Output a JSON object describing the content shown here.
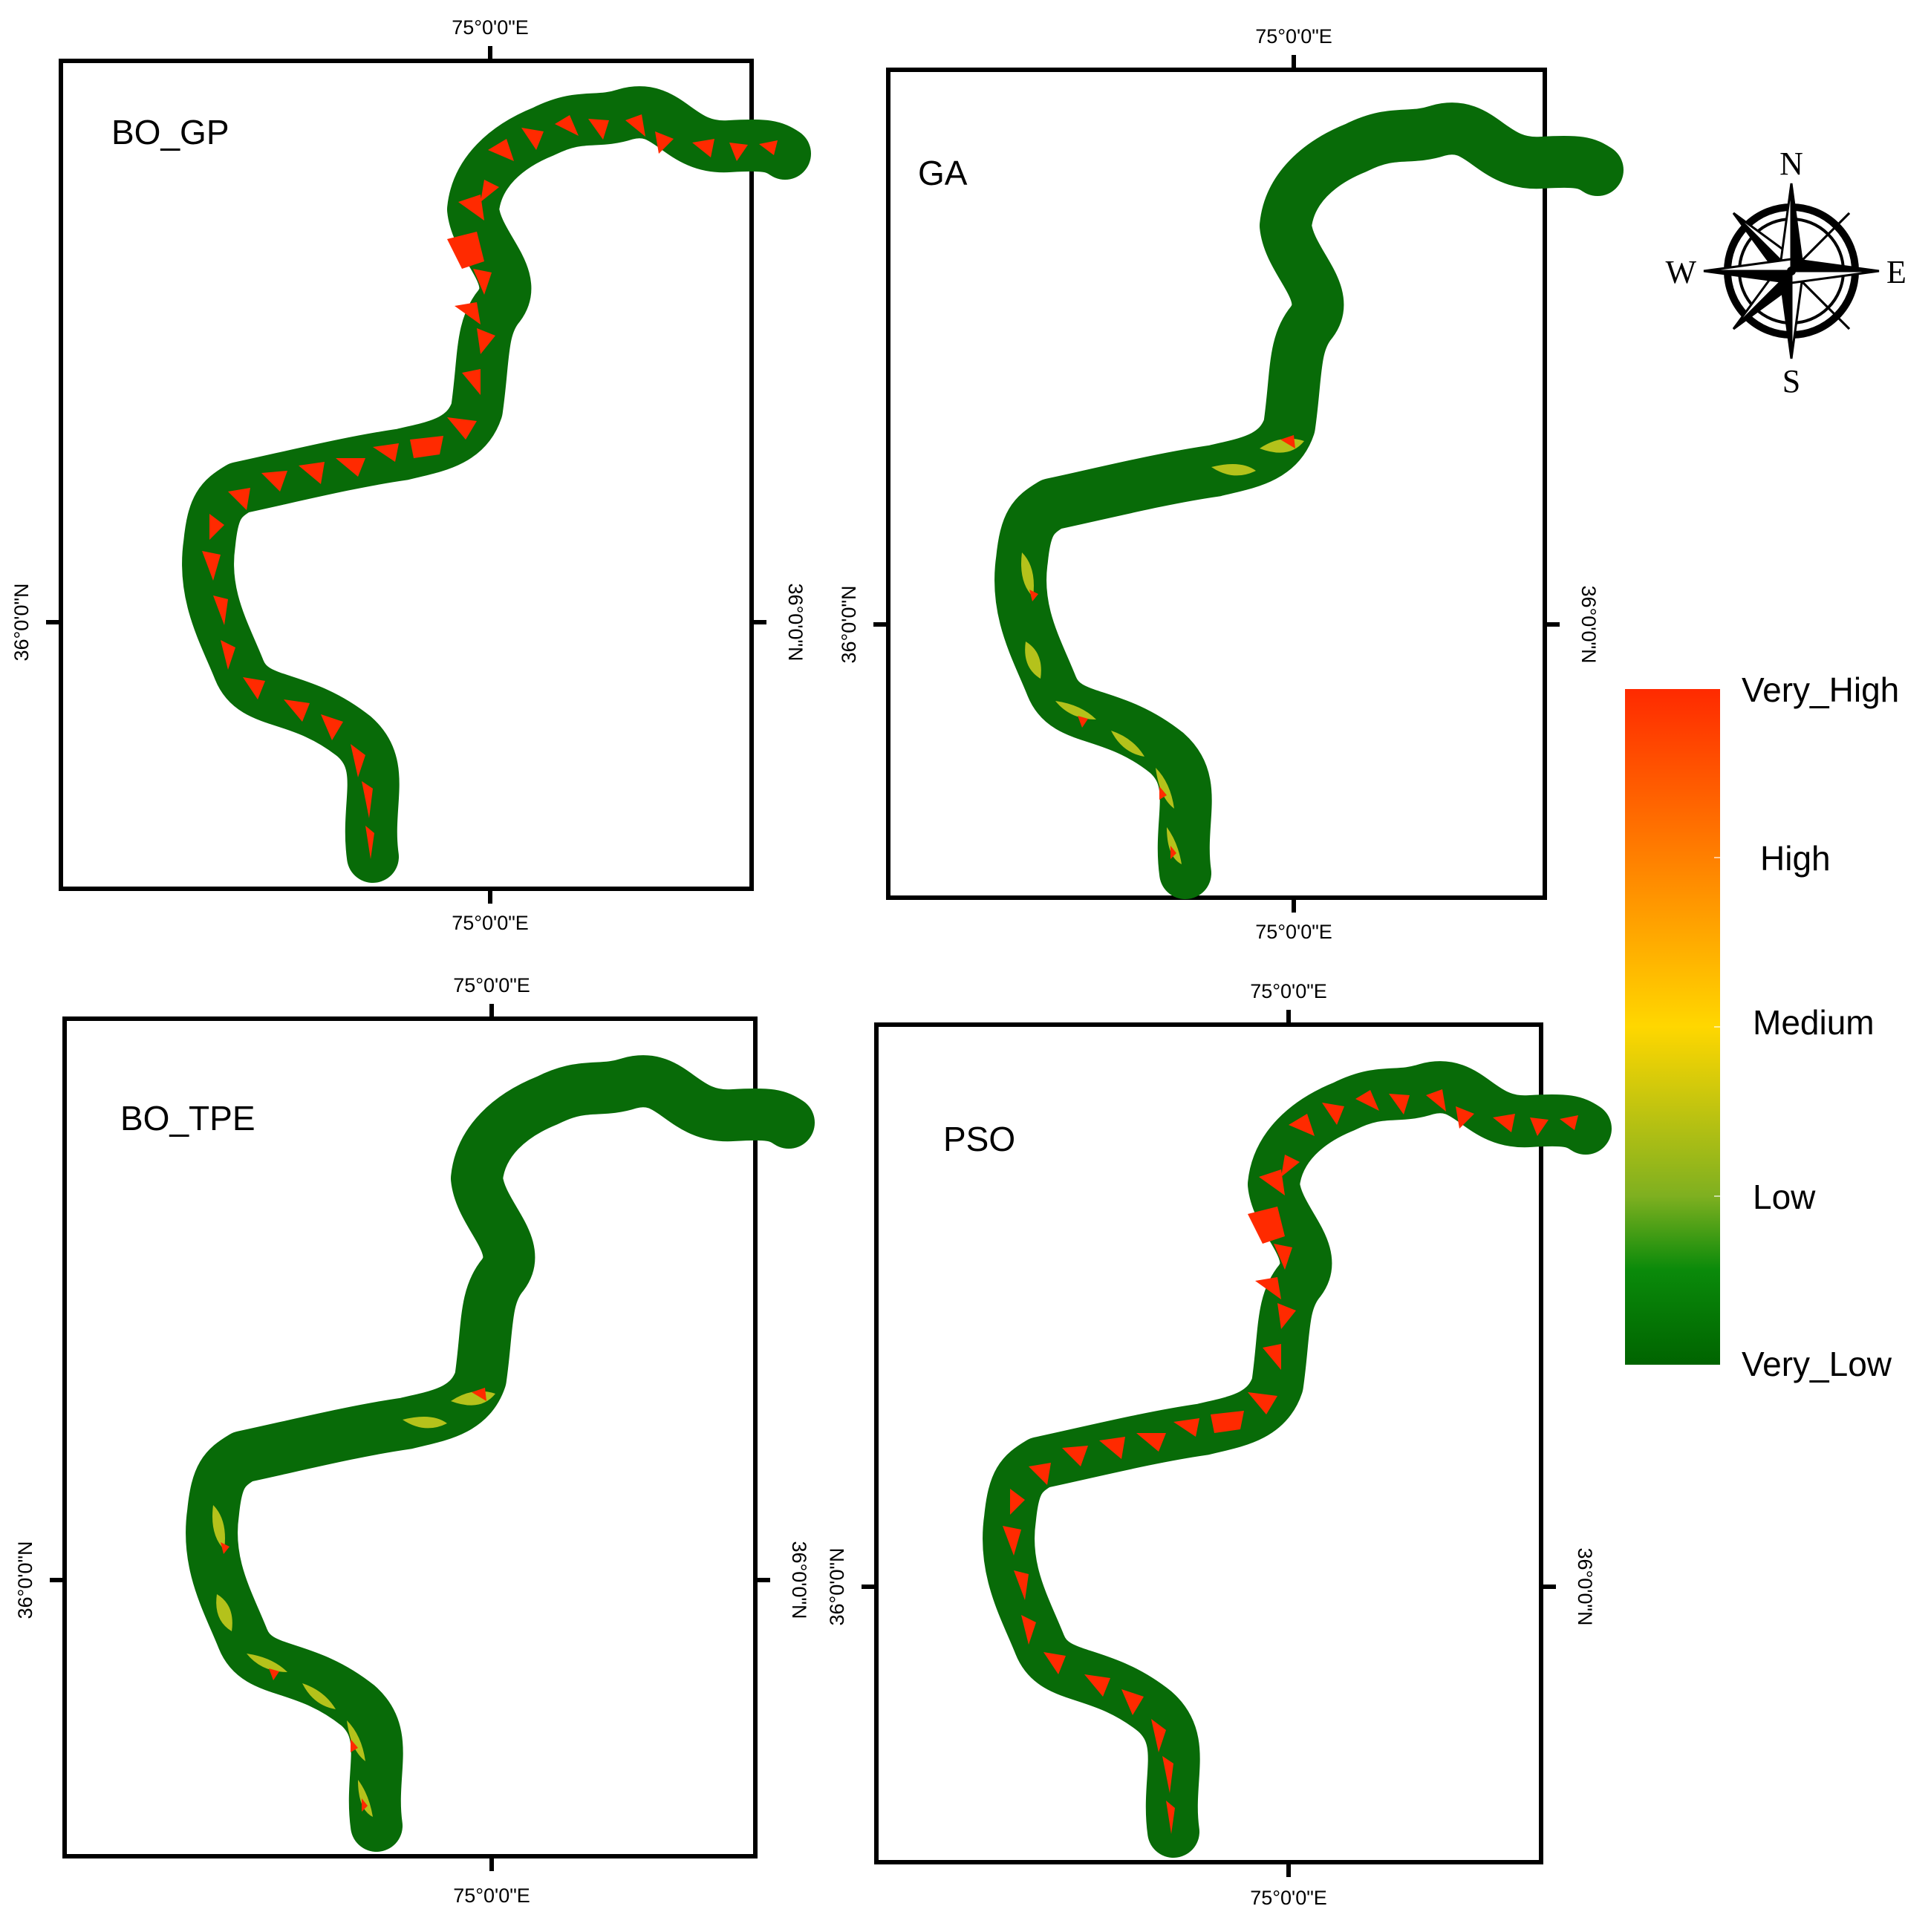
{
  "map": {
    "panels": [
      {
        "label": "BO_GP",
        "lon_label": "75°0'0\"E",
        "lat_label": "36°0'0\"N",
        "risk_pattern": "very_high_widespread"
      },
      {
        "label": "GA",
        "lon_label": "75°0'0\"E",
        "lat_label": "36°0'0\"N",
        "risk_pattern": "mostly_very_low"
      },
      {
        "label": "BO_TPE",
        "lon_label": "75°0'0\"E",
        "lat_label": "36°0'0\"N",
        "risk_pattern": "mostly_very_low"
      },
      {
        "label": "PSO",
        "lon_label": "75°0'0\"E",
        "lat_label": "36°0'0\"N",
        "risk_pattern": "very_high_widespread"
      }
    ],
    "legend": {
      "classes": [
        "Very_High",
        "High",
        "Medium",
        "Low",
        "Very_Low"
      ],
      "colors": [
        "#ff2a00",
        "#ff8000",
        "#ffd700",
        "#7fb020",
        "#006400"
      ]
    },
    "compass": {
      "north": "N",
      "south": "S",
      "east": "E",
      "west": "W",
      "icon": "compass-rose-icon"
    }
  }
}
